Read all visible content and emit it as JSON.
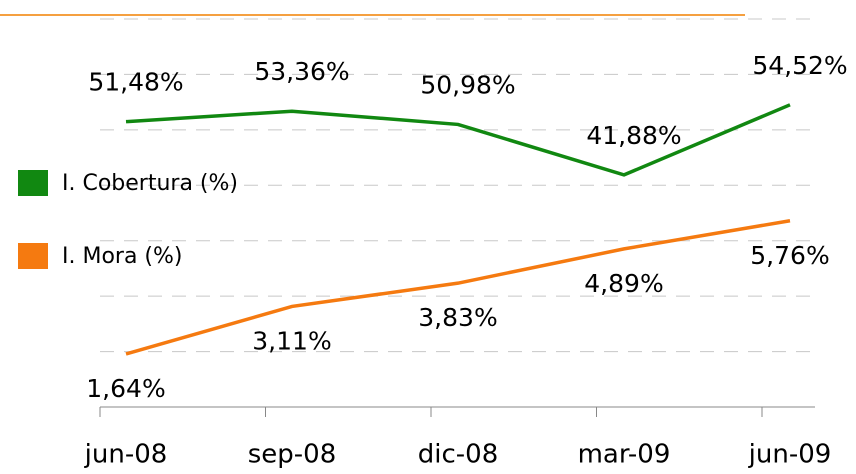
{
  "chart_data": {
    "type": "line",
    "categories": [
      "jun-08",
      "sep-08",
      "dic-08",
      "mar-09",
      "jun-09"
    ],
    "series": [
      {
        "name": "I. Cobertura (%)",
        "color": "#118811",
        "values": [
          51.48,
          53.36,
          50.98,
          41.88,
          54.52
        ],
        "value_labels": [
          "51,48%",
          "53,36%",
          "50,98%",
          "41,88%",
          "54,52%"
        ]
      },
      {
        "name": "I. Mora (%)",
        "color": "#f57a10",
        "axis": "y2",
        "values": [
          1.64,
          3.11,
          3.83,
          4.89,
          5.76
        ],
        "value_labels": [
          "1,64%",
          "3,11%",
          "3,83%",
          "4,89%",
          "5,76%"
        ]
      }
    ],
    "ylim": [
      0,
      70
    ],
    "yticks": [
      0,
      10,
      20,
      30,
      40,
      50,
      60,
      70
    ],
    "y2lim": [
      0,
      12
    ],
    "tick_labels": false,
    "grid": true,
    "legend": "left"
  }
}
